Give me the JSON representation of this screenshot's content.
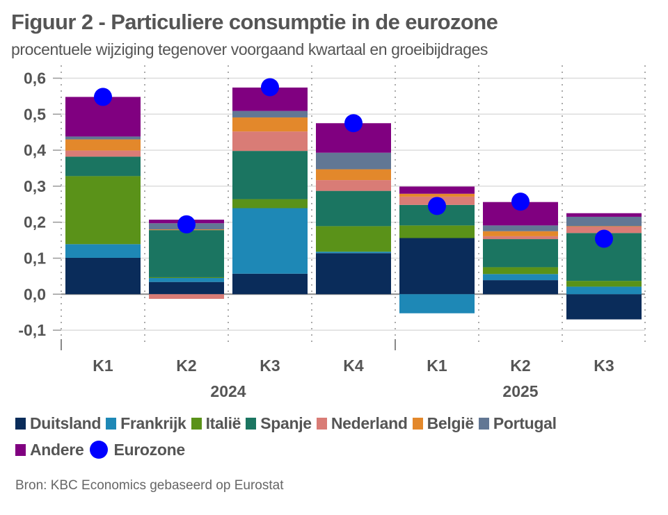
{
  "title": "Figuur 2 - Particuliere consumptie in de eurozone",
  "subtitle": "procentuele wijziging tegenover voorgaand kwartaal en groeibijdrages",
  "source": "Bron: KBC Economics gebaseerd op Eurostat",
  "chart_data": {
    "type": "bar",
    "stacked": true,
    "title": "Figuur 2 - Particuliere consumptie in de eurozone",
    "subtitle": "procentuele wijziging tegenover voorgaand kwartaal en groeibijdrages",
    "xlabel": "",
    "ylabel": "",
    "ylim": [
      -0.15,
      0.62
    ],
    "yticks": [
      -0.1,
      0.0,
      0.1,
      0.2,
      0.3,
      0.4,
      0.5,
      0.6
    ],
    "ytick_labels": [
      "-0,1",
      "0,0",
      "0,1",
      "0,2",
      "0,3",
      "0,4",
      "0,5",
      "0,6"
    ],
    "categories": [
      "K1",
      "K2",
      "K3",
      "K4",
      "K1",
      "K2",
      "K3"
    ],
    "groups": [
      {
        "label": "2024",
        "span": [
          0,
          3
        ]
      },
      {
        "label": "2025",
        "span": [
          4,
          6
        ]
      }
    ],
    "grid": true,
    "legend": "bottom",
    "series": [
      {
        "name": "Duitsland",
        "color": "#0a2c5a",
        "values": [
          0.101,
          0.034,
          0.057,
          0.114,
          0.156,
          0.039,
          -0.07
        ]
      },
      {
        "name": "Frankrijk",
        "color": "#1e88b6",
        "values": [
          0.038,
          0.011,
          0.182,
          0.004,
          -0.053,
          0.017,
          0.021
        ]
      },
      {
        "name": "Italië",
        "color": "#5a9219",
        "values": [
          0.189,
          0.002,
          0.025,
          0.071,
          0.035,
          0.019,
          0.016
        ]
      },
      {
        "name": "Spanje",
        "color": "#1b7561",
        "values": [
          0.054,
          0.131,
          0.134,
          0.098,
          0.057,
          0.078,
          0.133
        ]
      },
      {
        "name": "Nederland",
        "color": "#d97c76",
        "values": [
          0.017,
          -0.013,
          0.054,
          0.03,
          0.023,
          0.008,
          0.018
        ]
      },
      {
        "name": "België",
        "color": "#e3882b",
        "values": [
          0.031,
          0.002,
          0.039,
          0.03,
          0.008,
          0.014,
          0.001
        ]
      },
      {
        "name": "Portugal",
        "color": "#627794",
        "values": [
          0.008,
          0.017,
          0.018,
          0.046,
          0.0,
          0.016,
          0.026
        ]
      },
      {
        "name": "Andere",
        "color": "#800080",
        "values": [
          0.11,
          0.01,
          0.065,
          0.082,
          0.02,
          0.065,
          0.01
        ]
      }
    ],
    "line_series": {
      "name": "Eurozone",
      "marker": "circle",
      "color": "#0000ff",
      "values": [
        0.548,
        0.194,
        0.575,
        0.475,
        0.245,
        0.257,
        0.154
      ]
    }
  }
}
